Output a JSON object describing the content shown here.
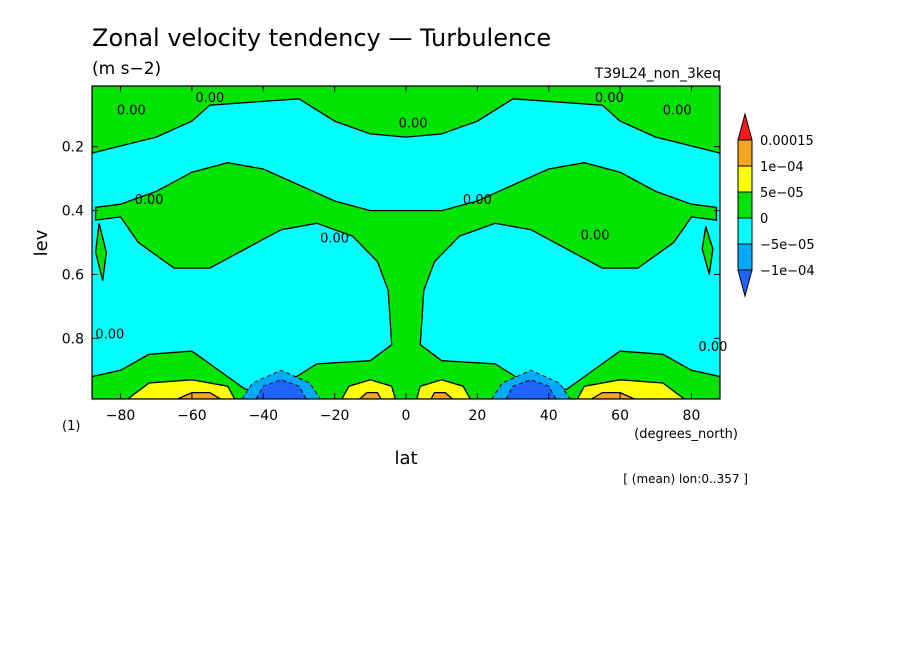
{
  "chart_data": {
    "type": "heatmap",
    "title": "Zonal velocity tendency — Turbulence",
    "units": "(m s−2)",
    "run_name": "T39L24_non_3keq",
    "xlabel": "lat",
    "x_units": "(degrees_north)",
    "ylabel": "lev",
    "y_units": "(1)",
    "footnote": "[ (mean) lon:0..357 ]",
    "xlim": [
      -88,
      88
    ],
    "ylim": [
      0.01,
      0.99
    ],
    "y_inverted": true,
    "x_ticks": [
      {
        "value": -80,
        "label": "−80"
      },
      {
        "value": -60,
        "label": "−60"
      },
      {
        "value": -40,
        "label": "−40"
      },
      {
        "value": -20,
        "label": "−20"
      },
      {
        "value": 0,
        "label": "0"
      },
      {
        "value": 20,
        "label": "20"
      },
      {
        "value": 40,
        "label": "40"
      },
      {
        "value": 60,
        "label": "60"
      },
      {
        "value": 80,
        "label": "80"
      }
    ],
    "y_ticks": [
      {
        "value": 0.2,
        "label": "0.2"
      },
      {
        "value": 0.4,
        "label": "0.4"
      },
      {
        "value": 0.6,
        "label": "0.6"
      },
      {
        "value": 0.8,
        "label": "0.8"
      }
    ],
    "colorbar": {
      "labels": [
        "0.00015",
        "1e−04",
        "5e−05",
        "0",
        "−5e−05",
        "−1e−04"
      ],
      "bins": [
        {
          "range": [
            "0.00015",
            null
          ],
          "color": "#ff1a1a"
        },
        {
          "range": [
            "1e-04",
            "0.00015"
          ],
          "color": "#f5a623"
        },
        {
          "range": [
            "5e-05",
            "1e-04"
          ],
          "color": "#ffff00"
        },
        {
          "range": [
            "0",
            "5e-05"
          ],
          "color": "#00e400"
        },
        {
          "range": [
            "-5e-05",
            "0"
          ],
          "color": "#00ffff"
        },
        {
          "range": [
            "-1e-04",
            "-5e-05"
          ],
          "color": "#00aaff"
        },
        {
          "range": [
            null,
            "-1e-04"
          ],
          "color": "#1e64ff"
        }
      ]
    },
    "contour_labels": [
      "0.00"
    ],
    "background_color": "#00ffff",
    "regions": [
      {
        "kind": "positive",
        "name": "top-band",
        "color": "#00e400",
        "pts": [
          [
            -88,
            0.01
          ],
          [
            88,
            0.01
          ],
          [
            88,
            0.22
          ],
          [
            70,
            0.17
          ],
          [
            60,
            0.12
          ],
          [
            55,
            0.07
          ],
          [
            30,
            0.05
          ],
          [
            20,
            0.12
          ],
          [
            10,
            0.16
          ],
          [
            0,
            0.17
          ],
          [
            -10,
            0.16
          ],
          [
            -20,
            0.12
          ],
          [
            -30,
            0.05
          ],
          [
            -55,
            0.07
          ],
          [
            -60,
            0.12
          ],
          [
            -70,
            0.17
          ],
          [
            -88,
            0.22
          ]
        ]
      },
      {
        "kind": "positive",
        "name": "mid-band",
        "color": "#00e400",
        "pts": [
          [
            -87,
            0.39
          ],
          [
            -80,
            0.38
          ],
          [
            -70,
            0.34
          ],
          [
            -60,
            0.28
          ],
          [
            -50,
            0.25
          ],
          [
            -40,
            0.27
          ],
          [
            -30,
            0.32
          ],
          [
            -20,
            0.37
          ],
          [
            -10,
            0.4
          ],
          [
            0,
            0.4
          ],
          [
            10,
            0.4
          ],
          [
            20,
            0.37
          ],
          [
            30,
            0.32
          ],
          [
            40,
            0.27
          ],
          [
            50,
            0.25
          ],
          [
            60,
            0.28
          ],
          [
            70,
            0.34
          ],
          [
            80,
            0.38
          ],
          [
            87,
            0.39
          ],
          [
            87,
            0.43
          ],
          [
            80,
            0.42
          ],
          [
            75,
            0.5
          ],
          [
            65,
            0.58
          ],
          [
            55,
            0.58
          ],
          [
            45,
            0.52
          ],
          [
            35,
            0.46
          ],
          [
            25,
            0.44
          ],
          [
            15,
            0.48
          ],
          [
            8,
            0.56
          ],
          [
            5,
            0.65
          ],
          [
            4,
            0.82
          ],
          [
            10,
            0.87
          ],
          [
            25,
            0.88
          ],
          [
            35,
            0.95
          ],
          [
            45,
            0.96
          ],
          [
            50,
            0.92
          ],
          [
            60,
            0.84
          ],
          [
            72,
            0.85
          ],
          [
            80,
            0.9
          ],
          [
            88,
            0.92
          ],
          [
            88,
            0.99
          ],
          [
            -88,
            0.99
          ],
          [
            -88,
            0.92
          ],
          [
            -80,
            0.9
          ],
          [
            -72,
            0.85
          ],
          [
            -60,
            0.84
          ],
          [
            -50,
            0.92
          ],
          [
            -45,
            0.96
          ],
          [
            -35,
            0.95
          ],
          [
            -25,
            0.88
          ],
          [
            -10,
            0.87
          ],
          [
            -4,
            0.82
          ],
          [
            -5,
            0.65
          ],
          [
            -8,
            0.56
          ],
          [
            -15,
            0.48
          ],
          [
            -25,
            0.44
          ],
          [
            -35,
            0.46
          ],
          [
            -45,
            0.52
          ],
          [
            -55,
            0.58
          ],
          [
            -65,
            0.58
          ],
          [
            -75,
            0.5
          ],
          [
            -80,
            0.42
          ],
          [
            -87,
            0.43
          ]
        ]
      },
      {
        "kind": "positive",
        "name": "left-sliver",
        "color": "#00e400",
        "pts": [
          [
            -86,
            0.44
          ],
          [
            -84,
            0.53
          ],
          [
            -85,
            0.62
          ],
          [
            -87,
            0.53
          ]
        ]
      },
      {
        "kind": "positive",
        "name": "right-sliver",
        "color": "#00e400",
        "pts": [
          [
            84,
            0.45
          ],
          [
            86,
            0.52
          ],
          [
            85,
            0.6
          ],
          [
            83,
            0.52
          ]
        ]
      },
      {
        "kind": "negative",
        "name": "nh-blue-outer",
        "color": "#00aaff",
        "pts": [
          [
            24,
            0.99
          ],
          [
            27,
            0.94
          ],
          [
            35,
            0.9
          ],
          [
            43,
            0.94
          ],
          [
            46,
            0.99
          ]
        ]
      },
      {
        "kind": "negative",
        "name": "sh-blue-outer",
        "color": "#00aaff",
        "pts": [
          [
            -46,
            0.99
          ],
          [
            -43,
            0.94
          ],
          [
            -35,
            0.9
          ],
          [
            -27,
            0.94
          ],
          [
            -24,
            0.99
          ]
        ]
      },
      {
        "kind": "negative",
        "name": "nh-blue-core",
        "color": "#1e64ff",
        "pts": [
          [
            28,
            0.99
          ],
          [
            30,
            0.95
          ],
          [
            35,
            0.93
          ],
          [
            40,
            0.95
          ],
          [
            42,
            0.99
          ]
        ]
      },
      {
        "kind": "negative",
        "name": "sh-blue-core",
        "color": "#1e64ff",
        "pts": [
          [
            -42,
            0.99
          ],
          [
            -40,
            0.95
          ],
          [
            -35,
            0.93
          ],
          [
            -30,
            0.95
          ],
          [
            -28,
            0.99
          ]
        ]
      },
      {
        "kind": "positive",
        "name": "eq-yellow-left",
        "color": "#ffff00",
        "pts": [
          [
            -18,
            0.99
          ],
          [
            -16,
            0.95
          ],
          [
            -10,
            0.93
          ],
          [
            -4,
            0.95
          ],
          [
            -3,
            0.99
          ]
        ]
      },
      {
        "kind": "positive",
        "name": "eq-yellow-right",
        "color": "#ffff00",
        "pts": [
          [
            3,
            0.99
          ],
          [
            4,
            0.95
          ],
          [
            10,
            0.93
          ],
          [
            16,
            0.95
          ],
          [
            18,
            0.99
          ]
        ]
      },
      {
        "kind": "positive",
        "name": "sh-yellow",
        "color": "#ffff00",
        "pts": [
          [
            -78,
            0.99
          ],
          [
            -72,
            0.94
          ],
          [
            -60,
            0.93
          ],
          [
            -50,
            0.95
          ],
          [
            -48,
            0.99
          ]
        ]
      },
      {
        "kind": "positive",
        "name": "nh-yellow",
        "color": "#ffff00",
        "pts": [
          [
            48,
            0.99
          ],
          [
            50,
            0.95
          ],
          [
            60,
            0.93
          ],
          [
            72,
            0.94
          ],
          [
            78,
            0.99
          ]
        ]
      },
      {
        "kind": "positive",
        "name": "sh-orange",
        "color": "#f5a623",
        "pts": [
          [
            -64,
            0.99
          ],
          [
            -60,
            0.97
          ],
          [
            -55,
            0.97
          ],
          [
            -52,
            0.99
          ]
        ]
      },
      {
        "kind": "positive",
        "name": "nh-orange",
        "color": "#f5a623",
        "pts": [
          [
            52,
            0.99
          ],
          [
            55,
            0.97
          ],
          [
            60,
            0.97
          ],
          [
            64,
            0.99
          ]
        ]
      },
      {
        "kind": "positive",
        "name": "eq-orange-left",
        "color": "#f5a623",
        "pts": [
          [
            -13,
            0.99
          ],
          [
            -11,
            0.97
          ],
          [
            -8,
            0.97
          ],
          [
            -7,
            0.99
          ]
        ]
      },
      {
        "kind": "positive",
        "name": "eq-orange-right",
        "color": "#f5a623",
        "pts": [
          [
            7,
            0.99
          ],
          [
            8,
            0.97
          ],
          [
            11,
            0.97
          ],
          [
            13,
            0.99
          ]
        ]
      }
    ]
  }
}
